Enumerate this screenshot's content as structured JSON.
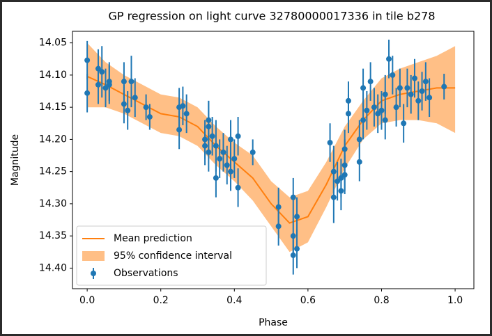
{
  "chart_data": {
    "type": "gp-regression",
    "title": "GP regression on light curve 32780000017336 in tile b278",
    "x_label": "Phase",
    "y_label": "Magnitude",
    "xlim": [
      -0.04,
      1.051
    ],
    "ylim": [
      14.432,
      14.032
    ],
    "xticks": [
      {
        "value": 0,
        "label": "0.0"
      },
      0.2,
      0.4,
      0.6,
      0.8,
      {
        "value": 1,
        "label": "1.0"
      }
    ],
    "yticks": [
      14.05,
      {
        "value": 14.1,
        "label": "14.10"
      },
      14.15,
      {
        "value": 14.2,
        "label": "14.20"
      },
      14.25,
      {
        "value": 14.3,
        "label": "14.30"
      },
      14.35,
      {
        "value": 14.4,
        "label": "14.40"
      }
    ],
    "legend": "lower left",
    "series": [
      {
        "name": "Mean prediction",
        "kind": "line",
        "color": "#ff7f0e",
        "x": [
          0,
          0.05,
          0.1,
          0.15,
          0.2,
          0.25,
          0.3,
          0.35,
          0.4,
          0.45,
          0.5,
          0.55,
          0.6,
          0.65,
          0.7,
          0.75,
          0.8,
          0.85,
          0.9,
          0.95,
          1.0
        ],
        "values": [
          14.102,
          14.115,
          14.13,
          14.145,
          14.16,
          14.165,
          14.18,
          14.21,
          14.235,
          14.26,
          14.3,
          14.33,
          14.32,
          14.27,
          14.21,
          14.17,
          14.14,
          14.13,
          14.125,
          14.12,
          14.12
        ]
      },
      {
        "name": "95% confidence interval",
        "kind": "band",
        "color": "#ffbf86",
        "x": [
          0,
          0.05,
          0.1,
          0.15,
          0.2,
          0.25,
          0.3,
          0.35,
          0.4,
          0.45,
          0.5,
          0.55,
          0.6,
          0.65,
          0.7,
          0.75,
          0.8,
          0.85,
          0.9,
          0.95,
          1.0
        ],
        "values": [
          14.05,
          14.08,
          14.1,
          14.115,
          14.13,
          14.135,
          14.15,
          14.18,
          14.205,
          14.225,
          14.265,
          14.29,
          14.28,
          14.235,
          14.18,
          14.14,
          14.105,
          14.09,
          14.08,
          14.07,
          14.055
        ],
        "upper": [
          14.15,
          14.15,
          14.16,
          14.175,
          14.19,
          14.195,
          14.21,
          14.24,
          14.265,
          14.295,
          14.335,
          14.375,
          14.36,
          14.305,
          14.245,
          14.2,
          14.175,
          14.17,
          14.17,
          14.175,
          14.19
        ]
      },
      {
        "name": "Observations",
        "kind": "errorbar",
        "color": "#1f77b4",
        "x": [
          0.0,
          0.0,
          0.03,
          0.03,
          0.04,
          0.05,
          0.06,
          0.06,
          0.1,
          0.1,
          0.11,
          0.12,
          0.13,
          0.16,
          0.17,
          0.25,
          0.25,
          0.26,
          0.27,
          0.32,
          0.32,
          0.33,
          0.33,
          0.33,
          0.34,
          0.35,
          0.35,
          0.36,
          0.37,
          0.38,
          0.39,
          0.39,
          0.4,
          0.41,
          0.41,
          0.45,
          0.52,
          0.52,
          0.56,
          0.56,
          0.56,
          0.57,
          0.57,
          0.66,
          0.67,
          0.67,
          0.68,
          0.69,
          0.69,
          0.7,
          0.7,
          0.7,
          0.71,
          0.71,
          0.74,
          0.74,
          0.75,
          0.75,
          0.76,
          0.77,
          0.78,
          0.79,
          0.8,
          0.81,
          0.81,
          0.82,
          0.83,
          0.84,
          0.85,
          0.86,
          0.87,
          0.88,
          0.89,
          0.9,
          0.91,
          0.92,
          0.93,
          0.97
        ],
        "values": [
          14.077,
          14.128,
          14.09,
          14.115,
          14.095,
          14.12,
          14.115,
          14.11,
          14.11,
          14.145,
          14.155,
          14.11,
          14.135,
          14.15,
          14.165,
          14.15,
          14.185,
          14.148,
          14.16,
          14.2,
          14.21,
          14.17,
          14.18,
          14.22,
          14.195,
          14.21,
          14.26,
          14.23,
          14.22,
          14.24,
          14.2,
          14.25,
          14.23,
          14.195,
          14.275,
          14.22,
          14.305,
          14.335,
          14.29,
          14.35,
          14.38,
          14.32,
          14.37,
          14.205,
          14.25,
          14.29,
          14.265,
          14.26,
          14.28,
          14.24,
          14.255,
          14.215,
          14.16,
          14.14,
          14.235,
          14.2,
          14.17,
          14.12,
          14.155,
          14.11,
          14.15,
          14.16,
          14.155,
          14.13,
          14.17,
          14.075,
          14.1,
          14.15,
          14.12,
          14.175,
          14.12,
          14.13,
          14.105,
          14.14,
          14.125,
          14.11,
          14.135,
          14.118
        ],
        "errors": [
          0.03,
          0.03,
          0.03,
          0.03,
          0.04,
          0.03,
          0.03,
          0.03,
          0.03,
          0.03,
          0.03,
          0.04,
          0.03,
          0.02,
          0.02,
          0.03,
          0.03,
          0.03,
          0.03,
          0.03,
          0.03,
          0.03,
          0.04,
          0.03,
          0.03,
          0.04,
          0.03,
          0.03,
          0.03,
          0.03,
          0.03,
          0.03,
          0.03,
          0.03,
          0.03,
          0.02,
          0.03,
          0.03,
          0.03,
          0.03,
          0.03,
          0.03,
          0.03,
          0.03,
          0.04,
          0.04,
          0.03,
          0.03,
          0.03,
          0.04,
          0.03,
          0.03,
          0.03,
          0.03,
          0.03,
          0.03,
          0.03,
          0.03,
          0.03,
          0.03,
          0.03,
          0.03,
          0.03,
          0.03,
          0.03,
          0.03,
          0.03,
          0.03,
          0.03,
          0.03,
          0.03,
          0.03,
          0.03,
          0.03,
          0.03,
          0.03,
          0.03,
          0.02
        ]
      }
    ]
  }
}
